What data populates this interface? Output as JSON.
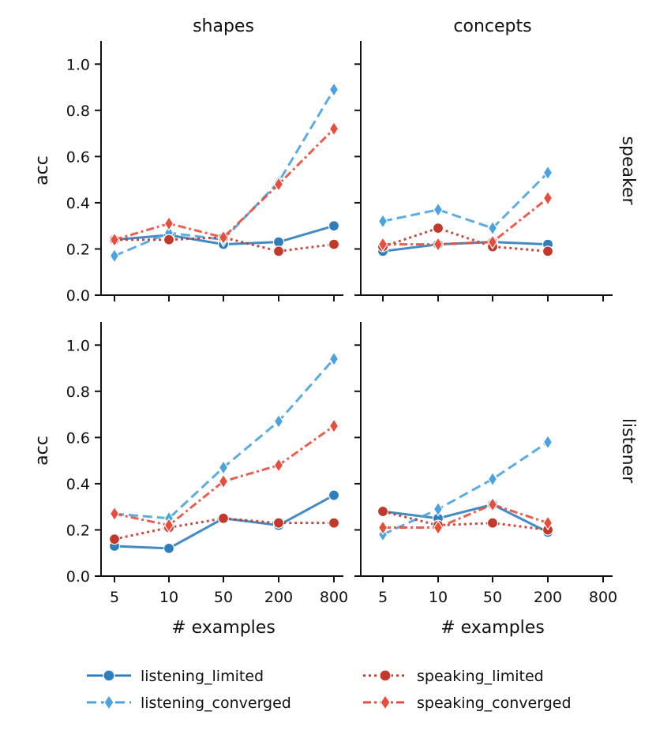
{
  "chart_data": {
    "type": "line",
    "layout": "facet grid 2x2",
    "col_titles": [
      "shapes",
      "concepts"
    ],
    "row_titles": [
      "speaker",
      "listener"
    ],
    "xlabel": "# examples",
    "ylabel": "acc",
    "x_categories": [
      "5",
      "10",
      "50",
      "200",
      "800"
    ],
    "y_ticks": [
      "0.0",
      "0.2",
      "0.4",
      "0.6",
      "0.8",
      "1.0"
    ],
    "ylim": [
      0,
      1.1
    ],
    "grid": false,
    "series": [
      {
        "name": "listening_limited",
        "color": "#2f7ebc",
        "marker": "circle",
        "dash": "solid"
      },
      {
        "name": "listening_converged",
        "color": "#4aa3df",
        "marker": "diamond",
        "dash": "dashed"
      },
      {
        "name": "speaking_limited",
        "color": "#c0392b",
        "marker": "circle",
        "dash": "dotted"
      },
      {
        "name": "speaking_converged",
        "color": "#e74c3c",
        "marker": "diamond",
        "dash": "dashdot"
      }
    ],
    "panels": [
      {
        "row": "speaker",
        "col": "shapes",
        "data": {
          "listening_limited": [
            0.24,
            0.26,
            0.22,
            0.23,
            0.3
          ],
          "listening_converged": [
            0.17,
            0.27,
            0.24,
            0.49,
            0.89
          ],
          "speaking_limited": [
            0.24,
            0.24,
            0.25,
            0.19,
            0.22
          ],
          "speaking_converged": [
            0.24,
            0.31,
            0.25,
            0.48,
            0.72
          ]
        }
      },
      {
        "row": "speaker",
        "col": "concepts",
        "data": {
          "listening_limited": [
            0.19,
            0.22,
            0.23,
            0.22,
            null
          ],
          "listening_converged": [
            0.32,
            0.37,
            0.29,
            0.53,
            null
          ],
          "speaking_limited": [
            0.21,
            0.29,
            0.21,
            0.19,
            null
          ],
          "speaking_converged": [
            0.22,
            0.22,
            0.23,
            0.42,
            null
          ]
        }
      },
      {
        "row": "listener",
        "col": "shapes",
        "data": {
          "listening_limited": [
            0.13,
            0.12,
            0.25,
            0.22,
            0.35
          ],
          "listening_converged": [
            0.27,
            0.25,
            0.47,
            0.67,
            0.94
          ],
          "speaking_limited": [
            0.16,
            0.21,
            0.25,
            0.23,
            0.23
          ],
          "speaking_converged": [
            0.27,
            0.22,
            0.41,
            0.48,
            0.65
          ]
        }
      },
      {
        "row": "listener",
        "col": "concepts",
        "data": {
          "listening_limited": [
            0.28,
            0.25,
            0.31,
            0.19,
            null
          ],
          "listening_converged": [
            0.18,
            0.29,
            0.42,
            0.58,
            null
          ],
          "speaking_limited": [
            0.28,
            0.22,
            0.23,
            0.2,
            null
          ],
          "speaking_converged": [
            0.21,
            0.21,
            0.31,
            0.23,
            null
          ]
        }
      }
    ]
  }
}
